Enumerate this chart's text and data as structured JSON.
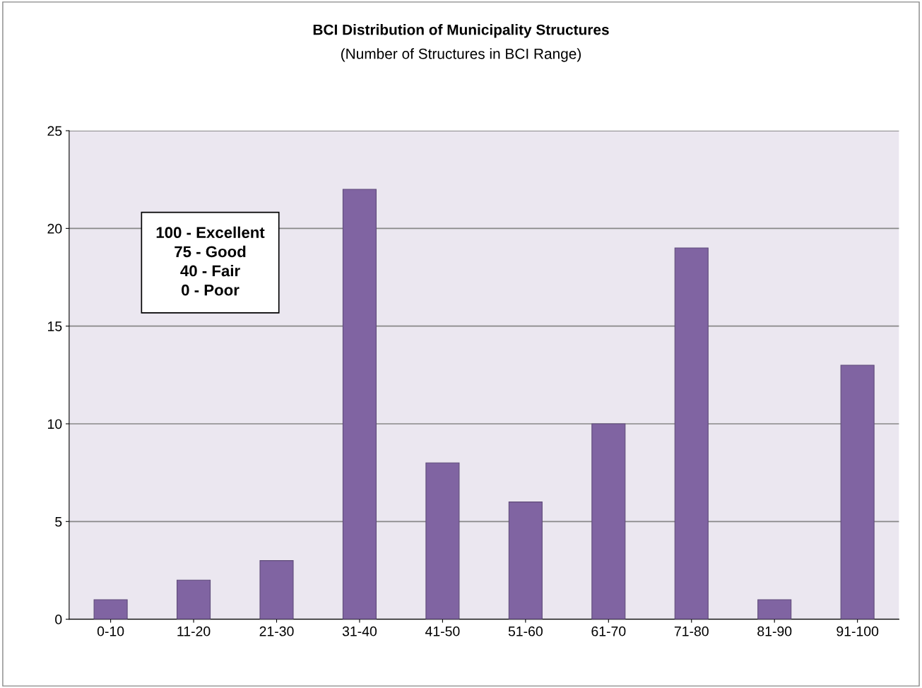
{
  "chart_data": {
    "type": "bar",
    "title": "BCI Distribution of Municipality Structures",
    "subtitle": "(Number of Structures in BCI Range)",
    "categories": [
      "0-10",
      "11-20",
      "21-30",
      "31-40",
      "41-50",
      "51-60",
      "61-70",
      "71-80",
      "81-90",
      "91-100"
    ],
    "values": [
      1,
      2,
      3,
      22,
      8,
      6,
      10,
      19,
      1,
      13
    ],
    "color": "#8064a2",
    "ylim": [
      0,
      25
    ],
    "yticks": [
      0,
      5,
      10,
      15,
      20,
      25
    ],
    "grid": "y",
    "legend": false,
    "annotations": [
      "100 - Excellent\n75 - Good\n40 - Fair\n0 - Poor"
    ]
  }
}
